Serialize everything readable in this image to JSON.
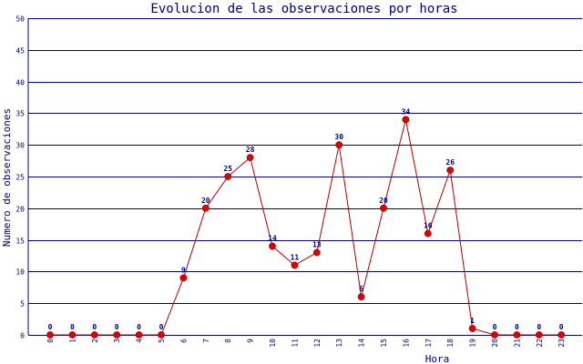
{
  "chart_data": {
    "type": "line",
    "title": "Evolucion de las observaciones por horas",
    "xlabel": "Hora",
    "ylabel": "Numero de observaciones",
    "categories": [
      "0",
      "1",
      "2",
      "3",
      "4",
      "5",
      "6",
      "7",
      "8",
      "9",
      "10",
      "11",
      "12",
      "13",
      "14",
      "15",
      "16",
      "17",
      "18",
      "19",
      "20",
      "21",
      "22",
      "23"
    ],
    "series": [
      {
        "values": [
          0,
          0,
          0,
          0,
          0,
          0,
          9,
          20,
          25,
          28,
          14,
          11,
          13,
          30,
          6,
          20,
          34,
          16,
          26,
          1,
          0,
          0,
          0,
          0
        ]
      }
    ],
    "ylim": [
      0,
      50
    ],
    "yticks": [
      0,
      5,
      10,
      15,
      20,
      25,
      30,
      35,
      40,
      45,
      50
    ],
    "grid": true,
    "data_labels": true
  },
  "colors": {
    "grid": "#000080",
    "text": "#000080",
    "line": "#b00000",
    "marker": "#dd0000"
  }
}
